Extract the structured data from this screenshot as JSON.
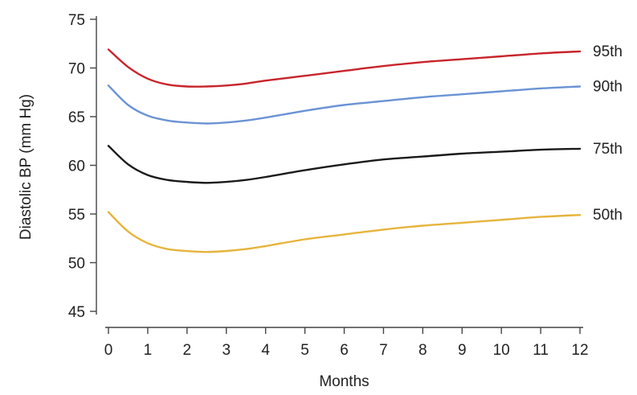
{
  "chart_data": {
    "type": "line",
    "title": "",
    "xlabel": "Months",
    "ylabel": "Diastolic BP (mm Hg)",
    "xlim": [
      0,
      12
    ],
    "ylim": [
      45,
      75
    ],
    "x_ticks": [
      "0",
      "1",
      "2",
      "3",
      "4",
      "5",
      "6",
      "7",
      "8",
      "9",
      "10",
      "11",
      "12"
    ],
    "y_ticks": [
      "45",
      "50",
      "55",
      "60",
      "65",
      "70",
      "75"
    ],
    "grid": false,
    "legend": "inline-right",
    "x": [
      0,
      0.5,
      1,
      1.5,
      2,
      2.5,
      3,
      3.5,
      4,
      5,
      6,
      7,
      8,
      9,
      10,
      11,
      12
    ],
    "series": [
      {
        "name": "95th",
        "color": "#c8242b",
        "values": [
          71.9,
          70.1,
          68.9,
          68.3,
          68.1,
          68.1,
          68.2,
          68.4,
          68.7,
          69.2,
          69.7,
          70.2,
          70.6,
          70.9,
          71.2,
          71.5,
          71.7
        ]
      },
      {
        "name": "90th",
        "color": "#6a93d4",
        "values": [
          68.2,
          66.2,
          65.1,
          64.6,
          64.4,
          64.3,
          64.4,
          64.6,
          64.9,
          65.6,
          66.2,
          66.6,
          67.0,
          67.3,
          67.6,
          67.9,
          68.1
        ]
      },
      {
        "name": "75th",
        "color": "#1a1a1a",
        "values": [
          62.0,
          60.1,
          59.0,
          58.5,
          58.3,
          58.2,
          58.3,
          58.5,
          58.8,
          59.5,
          60.1,
          60.6,
          60.9,
          61.2,
          61.4,
          61.6,
          61.7
        ]
      },
      {
        "name": "50th",
        "color": "#e6b43c",
        "values": [
          55.2,
          53.2,
          52.0,
          51.4,
          51.2,
          51.1,
          51.2,
          51.4,
          51.7,
          52.4,
          52.9,
          53.4,
          53.8,
          54.1,
          54.4,
          54.7,
          54.9
        ]
      }
    ]
  }
}
